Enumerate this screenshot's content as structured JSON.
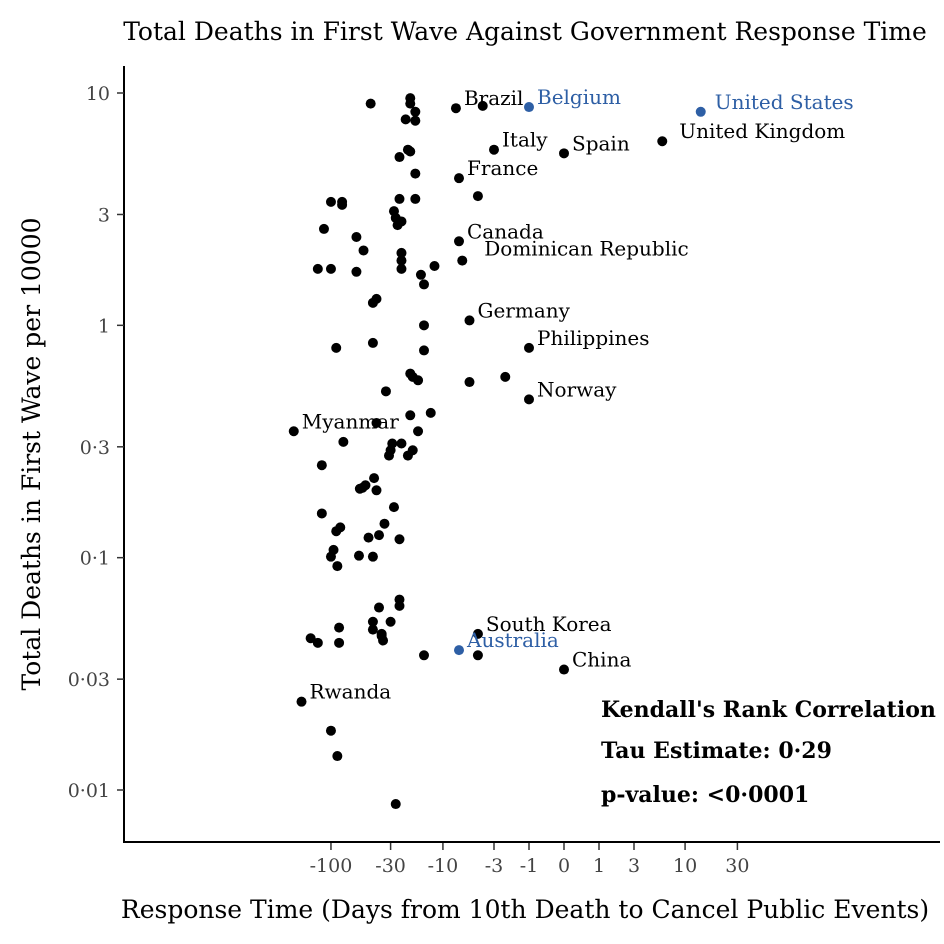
{
  "chart_data": {
    "type": "scatter",
    "title": "Total Deaths in First Wave Against Government Response Time",
    "xlabel": "Response Time (Days from 10th Death to Cancel Public Events)",
    "ylabel": "Total Deaths in First Wave per 10000",
    "x_scale": "signed-log",
    "y_scale": "log",
    "xlim": [
      -230,
      70
    ],
    "ylim": [
      0.0075,
      12.5
    ],
    "x_ticks": [
      -100,
      -30,
      -10,
      -3,
      -1,
      0,
      1,
      3,
      10,
      30
    ],
    "x_tick_labels": [
      "-100",
      "-30",
      "-10",
      "-3",
      "-1",
      "0",
      "1",
      "3",
      "10",
      "30"
    ],
    "y_ticks": [
      0.01,
      0.03,
      0.1,
      0.3,
      1,
      3,
      10
    ],
    "y_tick_labels": [
      "0·01",
      "0·03",
      "0·1",
      "0·3",
      "1",
      "3",
      "10"
    ],
    "grid": false,
    "colors": {
      "default": "#000000",
      "highlight": "#2e5fa5"
    },
    "stats": {
      "line1": "Kendall's Rank Correlation",
      "line2": "Tau Estimate: 0·29",
      "line3": "p-value: <0·0001"
    },
    "points": [
      {
        "x": -7.5,
        "y": 8.6,
        "label": "Brazil"
      },
      {
        "x": -1,
        "y": 8.7,
        "label": "Belgium",
        "highlight": true
      },
      {
        "x": 14,
        "y": 8.3,
        "label": "United States",
        "highlight": true
      },
      {
        "x": 6,
        "y": 6.2,
        "label": "United Kingdom"
      },
      {
        "x": -3,
        "y": 5.7,
        "label": "Italy"
      },
      {
        "x": 0,
        "y": 5.5,
        "label": "Spain"
      },
      {
        "x": -7,
        "y": 4.3,
        "label": "France"
      },
      {
        "x": -7,
        "y": 2.3,
        "label": "Canada"
      },
      {
        "x": -6.5,
        "y": 1.9,
        "label": "Dominican Republic"
      },
      {
        "x": -5.5,
        "y": 1.05,
        "label": "Germany"
      },
      {
        "x": -1,
        "y": 0.8,
        "label": "Philippines"
      },
      {
        "x": -1,
        "y": 0.48,
        "label": "Norway"
      },
      {
        "x": -210,
        "y": 0.35,
        "label": "Myanmar"
      },
      {
        "x": -4.5,
        "y": 0.047,
        "label": "South Korea"
      },
      {
        "x": -7,
        "y": 0.04,
        "label": "Australia",
        "highlight": true
      },
      {
        "x": 0,
        "y": 0.033,
        "label": "China"
      },
      {
        "x": -180,
        "y": 0.024,
        "label": "Rwanda"
      },
      {
        "x": -4,
        "y": 8.8
      },
      {
        "x": -45,
        "y": 9.0
      },
      {
        "x": -20,
        "y": 9.5
      },
      {
        "x": -20,
        "y": 9.0
      },
      {
        "x": -18,
        "y": 8.3
      },
      {
        "x": -22,
        "y": 7.7
      },
      {
        "x": -18,
        "y": 7.6
      },
      {
        "x": -21,
        "y": 5.7
      },
      {
        "x": -20,
        "y": 5.6
      },
      {
        "x": -25,
        "y": 5.3
      },
      {
        "x": -18,
        "y": 4.5
      },
      {
        "x": -4.5,
        "y": 3.6
      },
      {
        "x": -18,
        "y": 3.5
      },
      {
        "x": -25,
        "y": 3.5
      },
      {
        "x": -100,
        "y": 3.4
      },
      {
        "x": -80,
        "y": 3.4
      },
      {
        "x": -80,
        "y": 3.3
      },
      {
        "x": -28,
        "y": 3.1
      },
      {
        "x": -27,
        "y": 2.9
      },
      {
        "x": -24,
        "y": 2.8
      },
      {
        "x": -26,
        "y": 2.7
      },
      {
        "x": -115,
        "y": 2.6
      },
      {
        "x": -60,
        "y": 2.4
      },
      {
        "x": -52,
        "y": 2.1
      },
      {
        "x": -24,
        "y": 2.05
      },
      {
        "x": -24,
        "y": 1.9
      },
      {
        "x": -12,
        "y": 1.8
      },
      {
        "x": -24,
        "y": 1.75
      },
      {
        "x": -130,
        "y": 1.75
      },
      {
        "x": -100,
        "y": 1.75
      },
      {
        "x": -60,
        "y": 1.7
      },
      {
        "x": -16,
        "y": 1.65
      },
      {
        "x": -15,
        "y": 1.5
      },
      {
        "x": -40,
        "y": 1.3
      },
      {
        "x": -43,
        "y": 1.25
      },
      {
        "x": -15,
        "y": 1.0
      },
      {
        "x": -43,
        "y": 0.84
      },
      {
        "x": -90,
        "y": 0.8
      },
      {
        "x": -15,
        "y": 0.78
      },
      {
        "x": -20,
        "y": 0.62
      },
      {
        "x": -19,
        "y": 0.6
      },
      {
        "x": -17,
        "y": 0.58
      },
      {
        "x": -5.5,
        "y": 0.57
      },
      {
        "x": -2.2,
        "y": 0.6
      },
      {
        "x": -33,
        "y": 0.52
      },
      {
        "x": -13,
        "y": 0.42
      },
      {
        "x": -20,
        "y": 0.41
      },
      {
        "x": -40,
        "y": 0.38
      },
      {
        "x": -17,
        "y": 0.35
      },
      {
        "x": -78,
        "y": 0.315
      },
      {
        "x": -24,
        "y": 0.31
      },
      {
        "x": -29,
        "y": 0.31
      },
      {
        "x": -30,
        "y": 0.29
      },
      {
        "x": -19,
        "y": 0.29
      },
      {
        "x": -31,
        "y": 0.275
      },
      {
        "x": -21,
        "y": 0.275
      },
      {
        "x": -120,
        "y": 0.25
      },
      {
        "x": -42,
        "y": 0.22
      },
      {
        "x": -50,
        "y": 0.205
      },
      {
        "x": -53,
        "y": 0.2
      },
      {
        "x": -56,
        "y": 0.198
      },
      {
        "x": -40,
        "y": 0.195
      },
      {
        "x": -28,
        "y": 0.165
      },
      {
        "x": -120,
        "y": 0.155
      },
      {
        "x": -34,
        "y": 0.14
      },
      {
        "x": -83,
        "y": 0.135
      },
      {
        "x": -90,
        "y": 0.13
      },
      {
        "x": -38,
        "y": 0.125
      },
      {
        "x": -47,
        "y": 0.122
      },
      {
        "x": -25,
        "y": 0.12
      },
      {
        "x": -95,
        "y": 0.108
      },
      {
        "x": -100,
        "y": 0.101
      },
      {
        "x": -57,
        "y": 0.102
      },
      {
        "x": -43,
        "y": 0.101
      },
      {
        "x": -88,
        "y": 0.092
      },
      {
        "x": -25,
        "y": 0.066
      },
      {
        "x": -25,
        "y": 0.062
      },
      {
        "x": -38,
        "y": 0.061
      },
      {
        "x": -43,
        "y": 0.053
      },
      {
        "x": -30,
        "y": 0.053
      },
      {
        "x": -85,
        "y": 0.05
      },
      {
        "x": -43,
        "y": 0.049
      },
      {
        "x": -36,
        "y": 0.047
      },
      {
        "x": -36,
        "y": 0.046
      },
      {
        "x": -150,
        "y": 0.045
      },
      {
        "x": -35,
        "y": 0.044
      },
      {
        "x": -130,
        "y": 0.043
      },
      {
        "x": -85,
        "y": 0.043
      },
      {
        "x": -15,
        "y": 0.038
      },
      {
        "x": -4.5,
        "y": 0.038
      },
      {
        "x": -100,
        "y": 0.018
      },
      {
        "x": -88,
        "y": 0.014
      },
      {
        "x": -27,
        "y": 0.0087
      }
    ]
  }
}
